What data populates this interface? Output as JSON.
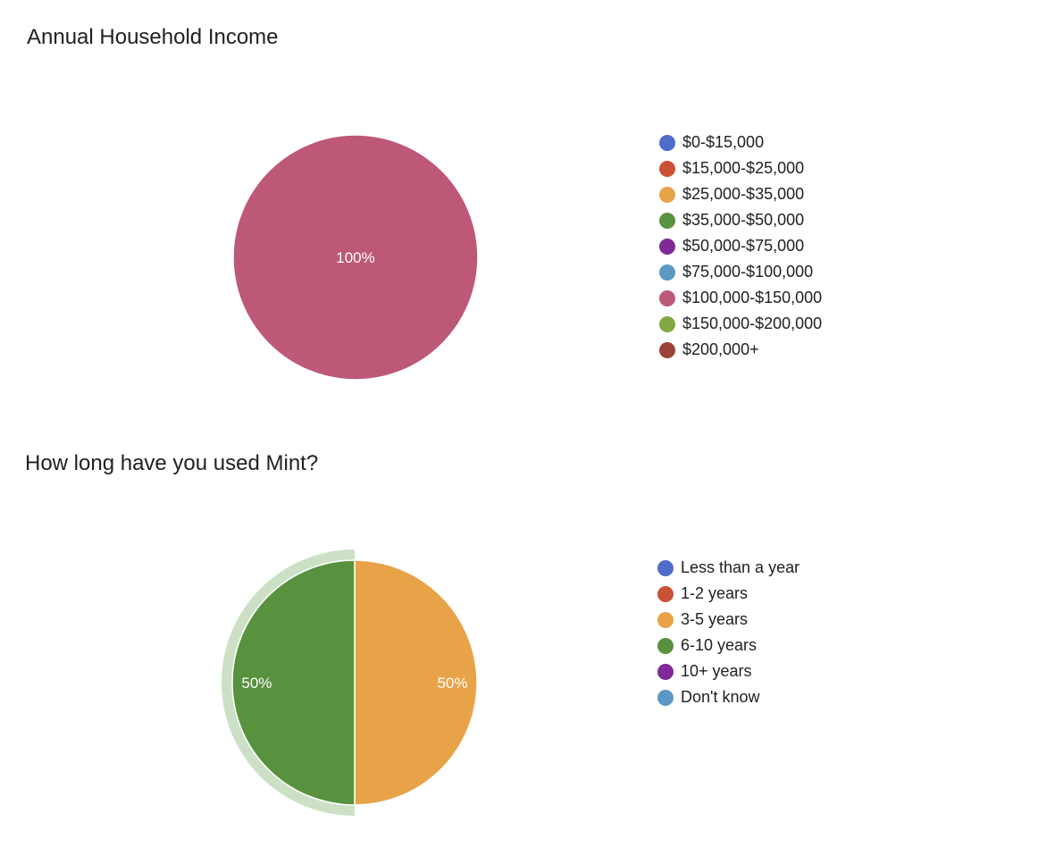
{
  "chart_data": [
    {
      "type": "pie",
      "title": "Annual Household Income",
      "categories": [
        "$0-$15,000",
        "$15,000-$25,000",
        "$25,000-$35,000",
        "$35,000-$50,000",
        "$50,000-$75,000",
        "$75,000-$100,000",
        "$100,000-$150,000",
        "$150,000-$200,000",
        "$200,000+"
      ],
      "colors": [
        "#4f6bcc",
        "#cb5136",
        "#e8a349",
        "#58923e",
        "#7f2a96",
        "#5c98c5",
        "#bd5876",
        "#80a842",
        "#9c4136"
      ],
      "values": [
        0,
        0,
        0,
        0,
        0,
        0,
        100,
        0,
        0
      ],
      "slice_labels": [
        "",
        "",
        "",
        "",
        "",
        "",
        "100%",
        "",
        ""
      ],
      "legend_position": "right"
    },
    {
      "type": "pie",
      "title": "How long have you used Mint?",
      "categories": [
        "Less than a year",
        "1-2 years",
        "3-5 years",
        "6-10 years",
        "10+ years",
        "Don't know"
      ],
      "colors": [
        "#4f6bcc",
        "#cb5136",
        "#e8a349",
        "#58923e",
        "#7f2a96",
        "#5c98c5"
      ],
      "values": [
        0,
        0,
        50,
        50,
        0,
        0
      ],
      "slice_labels": [
        "",
        "",
        "50%",
        "50%",
        "",
        ""
      ],
      "highlighted_category": "6-10 years",
      "highlight_color": "#cce0c6",
      "legend_position": "right"
    }
  ]
}
